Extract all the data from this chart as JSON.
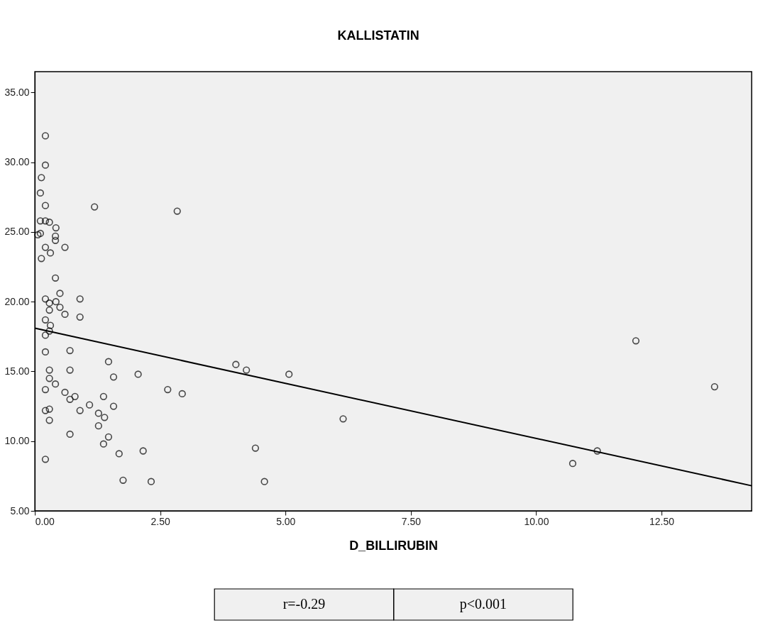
{
  "chart_data": {
    "type": "scatter",
    "title": "KALLISTATIN",
    "xlabel": "D_BILLIRUBIN",
    "xlim": [
      0,
      14.3
    ],
    "ylim": [
      5,
      36.5
    ],
    "xticks": [
      {
        "value": 0,
        "label": "0.00"
      },
      {
        "value": 2.5,
        "label": "2.50"
      },
      {
        "value": 5,
        "label": "5.00"
      },
      {
        "value": 7.5,
        "label": "7.50"
      },
      {
        "value": 10,
        "label": "10.00"
      },
      {
        "value": 12.5,
        "label": "12.50"
      }
    ],
    "yticks": [
      {
        "value": 5,
        "label": "5.00"
      },
      {
        "value": 10,
        "label": "10.00"
      },
      {
        "value": 15,
        "label": "15.00"
      },
      {
        "value": 20,
        "label": "20.00"
      },
      {
        "value": 25,
        "label": "25.00"
      },
      {
        "value": 30,
        "label": "30.00"
      },
      {
        "value": 35,
        "label": "35.00"
      }
    ],
    "annotations": [
      "r=-0.29",
      "p<0.001"
    ],
    "series": [
      {
        "color": "#000000",
        "marker": "circle",
        "x": [
          0.21,
          0.21,
          0.13,
          0.11,
          0.21,
          1.19,
          0.11,
          0.21,
          0.29,
          0.42,
          0.11,
          0.06,
          0.41,
          0.41,
          0.21,
          0.31,
          0.13,
          0.6,
          0.41,
          0.5,
          0.9,
          0.21,
          0.29,
          0.42,
          0.5,
          0.29,
          0.6,
          0.9,
          0.21,
          0.31,
          0.29,
          0.21,
          0.21,
          0.7,
          1.47,
          0.29,
          0.7,
          2.06,
          1.57,
          0.29,
          0.41,
          0.21,
          0.6,
          0.7,
          0.8,
          1.37,
          1.09,
          1.57,
          0.29,
          0.21,
          0.9,
          1.27,
          1.39,
          0.29,
          1.27,
          0.7,
          1.47,
          1.37,
          1.68,
          2.16,
          0.21,
          1.76,
          2.32,
          2.84,
          2.65,
          2.94,
          4.01,
          4.22,
          5.07,
          4.4,
          4.58,
          6.15,
          10.73,
          11.22,
          11.99,
          13.56
        ],
        "values": [
          31.9,
          29.8,
          28.9,
          27.8,
          26.9,
          26.8,
          25.8,
          25.8,
          25.7,
          25.3,
          24.9,
          24.8,
          24.7,
          24.4,
          23.9,
          23.5,
          23.1,
          23.9,
          21.7,
          20.6,
          20.2,
          20.2,
          19.9,
          20.0,
          19.6,
          19.4,
          19.1,
          18.9,
          18.7,
          18.3,
          17.9,
          17.6,
          16.4,
          16.5,
          15.7,
          15.1,
          15.1,
          14.8,
          14.6,
          14.5,
          14.1,
          13.7,
          13.5,
          13.0,
          13.2,
          13.2,
          12.6,
          12.5,
          12.3,
          12.2,
          12.2,
          12.0,
          11.7,
          11.5,
          11.1,
          10.5,
          10.3,
          9.8,
          9.1,
          9.3,
          8.7,
          7.2,
          7.1,
          26.5,
          13.7,
          13.4,
          15.5,
          15.1,
          14.8,
          9.5,
          7.1,
          11.6,
          8.4,
          9.3,
          17.2,
          13.9
        ]
      },
      {
        "type": "line",
        "marker": "none",
        "color": "#000000",
        "x": [
          0,
          14.3
        ],
        "values": [
          18.1,
          6.8
        ]
      }
    ]
  }
}
